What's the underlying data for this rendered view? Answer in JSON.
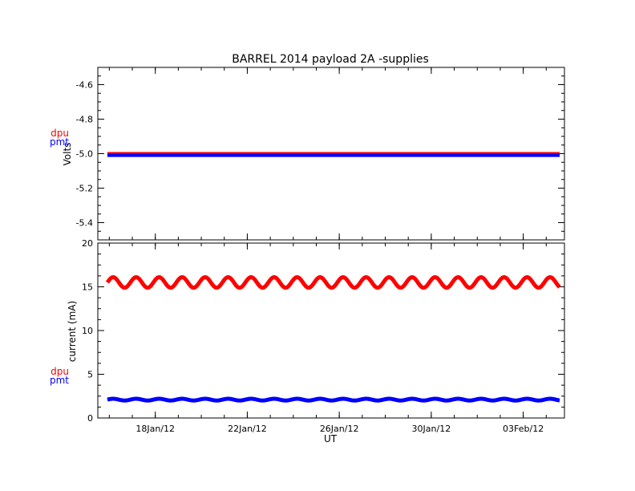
{
  "figure": {
    "title": "BARREL 2014 payload 2A -supplies",
    "xlabel": "UT"
  },
  "chart_data": [
    {
      "type": "line",
      "title": "BARREL 2014 payload 2A -supplies",
      "xlabel": "",
      "ylabel": "Volts",
      "ylim": [
        -5.5,
        -4.5
      ],
      "yticks": [
        "-4.6",
        "-4.8",
        "-5.0",
        "-5.2",
        "-5.4"
      ],
      "ytick_values": [
        -4.6,
        -4.8,
        -5.0,
        -5.2,
        -5.4
      ],
      "x_range": [
        "2014-01-16T00:00",
        "2014-02-05T07:00"
      ],
      "xtick_labels": [
        "18Jan/12",
        "22Jan/12",
        "26Jan/12",
        "30Jan/12",
        "03Feb/12"
      ],
      "xtick_dates": [
        "2014-01-18T12:00",
        "2014-01-22T12:00",
        "2014-01-26T12:00",
        "2014-01-30T12:00",
        "2014-02-03T12:00"
      ],
      "data_start": "2014-01-16T10:00",
      "data_end": "2014-02-05T02:00",
      "legend": [
        "dpu",
        "pmt"
      ],
      "legend_placement": "left of axes",
      "series": [
        {
          "name": "dpu",
          "color": "#ff0000",
          "values": [
            -5.0,
            -5.0
          ]
        },
        {
          "name": "pmt",
          "color": "#0000ff",
          "values": [
            -5.01,
            -5.01
          ]
        }
      ]
    },
    {
      "type": "line",
      "xlabel": "UT",
      "ylabel": "current (mA)",
      "ylim": [
        0,
        20
      ],
      "yticks": [
        "20",
        "15",
        "10",
        "5",
        "0"
      ],
      "ytick_values": [
        20,
        15,
        10,
        5,
        0
      ],
      "x_range": [
        "2014-01-16T00:00",
        "2014-02-05T07:00"
      ],
      "xtick_labels": [
        "18Jan/12",
        "22Jan/12",
        "26Jan/12",
        "30Jan/12",
        "03Feb/12"
      ],
      "xtick_dates": [
        "2014-01-18T12:00",
        "2014-01-22T12:00",
        "2014-01-26T12:00",
        "2014-01-30T12:00",
        "2014-02-03T12:00"
      ],
      "data_start": "2014-01-16T10:00",
      "data_end": "2014-02-05T02:00",
      "legend": [
        "dpu",
        "pmt"
      ],
      "legend_placement": "left of axes",
      "series": [
        {
          "name": "dpu",
          "color": "#ff0000",
          "mean": 15.5,
          "amplitude": 0.6,
          "period_days": 1
        },
        {
          "name": "pmt",
          "color": "#0000ff",
          "mean": 2.1,
          "amplitude": 0.1,
          "period_days": 1
        }
      ]
    }
  ]
}
